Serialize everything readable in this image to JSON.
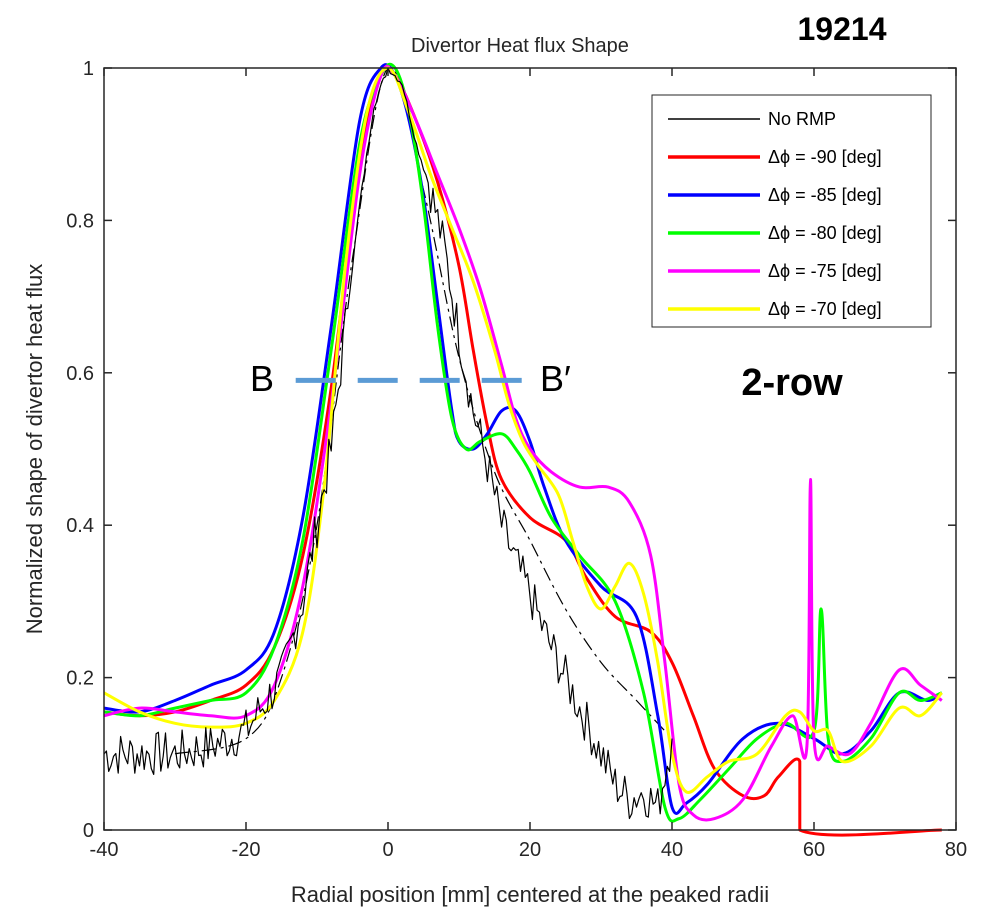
{
  "chart_data": {
    "type": "line",
    "title": "Divertor Heat flux Shape",
    "shot_label": "19214",
    "config_label": "2-row",
    "xlabel": "Radial position [mm] centered at the peaked radii",
    "ylabel": "Normalized shape of divertor heat flux",
    "xlim": [
      -40,
      80
    ],
    "ylim": [
      0,
      1
    ],
    "xticks": [
      "-40",
      "-20",
      "0",
      "20",
      "40",
      "60",
      "80"
    ],
    "yticks": [
      "0",
      "0.2",
      "0.4",
      "0.6",
      "0.8",
      "1"
    ],
    "legend_position": "top-right",
    "grid": false,
    "annotation": {
      "left": "B",
      "right": "B′",
      "y": 0.59,
      "x_range": [
        -13,
        19
      ],
      "color": "#5b9bd5"
    },
    "fit_curve": {
      "style": "dash-dot",
      "color": "#000000",
      "points": [
        [
          -30,
          0.1
        ],
        [
          -20,
          0.12
        ],
        [
          -15,
          0.2
        ],
        [
          -10,
          0.4
        ],
        [
          -5,
          0.75
        ],
        [
          0,
          1.0
        ],
        [
          5,
          0.84
        ],
        [
          10,
          0.62
        ],
        [
          15,
          0.47
        ],
        [
          20,
          0.38
        ],
        [
          25,
          0.29
        ],
        [
          30,
          0.22
        ],
        [
          35,
          0.17
        ],
        [
          40,
          0.12
        ]
      ]
    },
    "series": [
      {
        "name": "No RMP",
        "color": "#000000",
        "width": 1.2,
        "noise": 0.03,
        "points": [
          [
            -40,
            0.1
          ],
          [
            -30,
            0.1
          ],
          [
            -25,
            0.11
          ],
          [
            -20,
            0.13
          ],
          [
            -15,
            0.2
          ],
          [
            -12,
            0.3
          ],
          [
            -8,
            0.5
          ],
          [
            -4,
            0.82
          ],
          [
            -2,
            0.95
          ],
          [
            0,
            1.0
          ],
          [
            2,
            0.98
          ],
          [
            4,
            0.9
          ],
          [
            6,
            0.84
          ],
          [
            8,
            0.76
          ],
          [
            10,
            0.65
          ],
          [
            12,
            0.55
          ],
          [
            14,
            0.48
          ],
          [
            16,
            0.4
          ],
          [
            18,
            0.35
          ],
          [
            20,
            0.31
          ],
          [
            22,
            0.26
          ],
          [
            24,
            0.22
          ],
          [
            26,
            0.18
          ],
          [
            28,
            0.14
          ],
          [
            30,
            0.1
          ],
          [
            32,
            0.06
          ],
          [
            34,
            0.04
          ],
          [
            36,
            0.05
          ],
          [
            38,
            0.03
          ],
          [
            40,
            0.12
          ]
        ]
      },
      {
        "name": "Δϕ = -90 [deg]",
        "color": "#ff0000",
        "width": 3,
        "points": [
          [
            -40,
            0.155
          ],
          [
            -35,
            0.15
          ],
          [
            -30,
            0.155
          ],
          [
            -25,
            0.17
          ],
          [
            -20,
            0.19
          ],
          [
            -16,
            0.24
          ],
          [
            -12,
            0.36
          ],
          [
            -8,
            0.58
          ],
          [
            -4,
            0.88
          ],
          [
            -1,
            0.99
          ],
          [
            1,
            0.99
          ],
          [
            4,
            0.93
          ],
          [
            7,
            0.85
          ],
          [
            10,
            0.74
          ],
          [
            12,
            0.63
          ],
          [
            14,
            0.53
          ],
          [
            16,
            0.46
          ],
          [
            20,
            0.41
          ],
          [
            25,
            0.38
          ],
          [
            28,
            0.33
          ],
          [
            32,
            0.28
          ],
          [
            37,
            0.26
          ],
          [
            40,
            0.22
          ],
          [
            43,
            0.15
          ],
          [
            46,
            0.08
          ],
          [
            50,
            0.045
          ],
          [
            53,
            0.045
          ],
          [
            55,
            0.07
          ],
          [
            58,
            0.09
          ],
          [
            58,
            0.0
          ],
          [
            78,
            0.0
          ]
        ]
      },
      {
        "name": "Δϕ = -85 [deg]",
        "color": "#0000ff",
        "width": 3,
        "points": [
          [
            -40,
            0.16
          ],
          [
            -35,
            0.155
          ],
          [
            -30,
            0.17
          ],
          [
            -25,
            0.19
          ],
          [
            -20,
            0.21
          ],
          [
            -16,
            0.26
          ],
          [
            -12,
            0.41
          ],
          [
            -8,
            0.66
          ],
          [
            -4,
            0.93
          ],
          [
            -1,
            1.0
          ],
          [
            1,
            0.99
          ],
          [
            3,
            0.93
          ],
          [
            5,
            0.83
          ],
          [
            7,
            0.69
          ],
          [
            9,
            0.55
          ],
          [
            10,
            0.51
          ],
          [
            12,
            0.5
          ],
          [
            14,
            0.52
          ],
          [
            16,
            0.55
          ],
          [
            18,
            0.55
          ],
          [
            20,
            0.51
          ],
          [
            22,
            0.45
          ],
          [
            25,
            0.38
          ],
          [
            30,
            0.32
          ],
          [
            35,
            0.28
          ],
          [
            38,
            0.15
          ],
          [
            40,
            0.03
          ],
          [
            42,
            0.035
          ],
          [
            45,
            0.06
          ],
          [
            50,
            0.12
          ],
          [
            55,
            0.14
          ],
          [
            60,
            0.12
          ],
          [
            64,
            0.1
          ],
          [
            68,
            0.13
          ],
          [
            72,
            0.18
          ],
          [
            76,
            0.17
          ],
          [
            78,
            0.18
          ]
        ]
      },
      {
        "name": "Δϕ = -80 [deg]",
        "color": "#00ff00",
        "width": 3,
        "points": [
          [
            -40,
            0.155
          ],
          [
            -35,
            0.15
          ],
          [
            -30,
            0.16
          ],
          [
            -25,
            0.17
          ],
          [
            -20,
            0.18
          ],
          [
            -16,
            0.24
          ],
          [
            -12,
            0.38
          ],
          [
            -8,
            0.63
          ],
          [
            -4,
            0.9
          ],
          [
            -1,
            0.99
          ],
          [
            1,
            1.0
          ],
          [
            3,
            0.94
          ],
          [
            5,
            0.82
          ],
          [
            7,
            0.66
          ],
          [
            9,
            0.54
          ],
          [
            11,
            0.5
          ],
          [
            13,
            0.51
          ],
          [
            16,
            0.52
          ],
          [
            18,
            0.5
          ],
          [
            20,
            0.47
          ],
          [
            23,
            0.41
          ],
          [
            27,
            0.36
          ],
          [
            32,
            0.3
          ],
          [
            36,
            0.18
          ],
          [
            39,
            0.03
          ],
          [
            41,
            0.015
          ],
          [
            44,
            0.04
          ],
          [
            48,
            0.08
          ],
          [
            52,
            0.12
          ],
          [
            56,
            0.14
          ],
          [
            60,
            0.13
          ],
          [
            61,
            0.29
          ],
          [
            62,
            0.12
          ],
          [
            64,
            0.09
          ],
          [
            68,
            0.12
          ],
          [
            72,
            0.18
          ],
          [
            75,
            0.17
          ],
          [
            78,
            0.18
          ]
        ]
      },
      {
        "name": "Δϕ = -75 [deg]",
        "color": "#ff00ff",
        "width": 3,
        "points": [
          [
            -40,
            0.15
          ],
          [
            -35,
            0.16
          ],
          [
            -30,
            0.155
          ],
          [
            -25,
            0.15
          ],
          [
            -20,
            0.15
          ],
          [
            -16,
            0.19
          ],
          [
            -12,
            0.32
          ],
          [
            -8,
            0.56
          ],
          [
            -4,
            0.86
          ],
          [
            -1,
            0.99
          ],
          [
            1,
            0.99
          ],
          [
            4,
            0.93
          ],
          [
            7,
            0.86
          ],
          [
            10,
            0.79
          ],
          [
            13,
            0.71
          ],
          [
            16,
            0.61
          ],
          [
            18,
            0.54
          ],
          [
            20,
            0.5
          ],
          [
            23,
            0.47
          ],
          [
            27,
            0.45
          ],
          [
            31,
            0.45
          ],
          [
            34,
            0.43
          ],
          [
            37,
            0.36
          ],
          [
            39,
            0.22
          ],
          [
            41,
            0.06
          ],
          [
            43,
            0.02
          ],
          [
            46,
            0.015
          ],
          [
            50,
            0.04
          ],
          [
            54,
            0.11
          ],
          [
            57,
            0.15
          ],
          [
            59,
            0.11
          ],
          [
            59.5,
            0.46
          ],
          [
            60,
            0.12
          ],
          [
            62,
            0.11
          ],
          [
            65,
            0.1
          ],
          [
            68,
            0.14
          ],
          [
            72,
            0.21
          ],
          [
            75,
            0.19
          ],
          [
            78,
            0.17
          ]
        ]
      },
      {
        "name": "Δϕ = -70 [deg]",
        "color": "#ffff00",
        "width": 3,
        "points": [
          [
            -40,
            0.18
          ],
          [
            -35,
            0.155
          ],
          [
            -30,
            0.14
          ],
          [
            -25,
            0.135
          ],
          [
            -20,
            0.14
          ],
          [
            -16,
            0.17
          ],
          [
            -12,
            0.26
          ],
          [
            -9,
            0.45
          ],
          [
            -6,
            0.74
          ],
          [
            -3,
            0.94
          ],
          [
            0,
            1.0
          ],
          [
            3,
            0.94
          ],
          [
            6,
            0.86
          ],
          [
            9,
            0.79
          ],
          [
            12,
            0.72
          ],
          [
            15,
            0.63
          ],
          [
            17,
            0.56
          ],
          [
            19,
            0.51
          ],
          [
            21,
            0.48
          ],
          [
            24,
            0.44
          ],
          [
            26,
            0.38
          ],
          [
            28,
            0.32
          ],
          [
            30,
            0.29
          ],
          [
            32,
            0.32
          ],
          [
            34,
            0.35
          ],
          [
            36,
            0.31
          ],
          [
            38,
            0.22
          ],
          [
            40,
            0.1
          ],
          [
            42,
            0.05
          ],
          [
            45,
            0.07
          ],
          [
            48,
            0.09
          ],
          [
            52,
            0.1
          ],
          [
            56,
            0.15
          ],
          [
            58,
            0.155
          ],
          [
            60,
            0.13
          ],
          [
            62,
            0.13
          ],
          [
            64,
            0.09
          ],
          [
            68,
            0.11
          ],
          [
            72,
            0.16
          ],
          [
            75,
            0.15
          ],
          [
            78,
            0.18
          ]
        ]
      }
    ]
  }
}
